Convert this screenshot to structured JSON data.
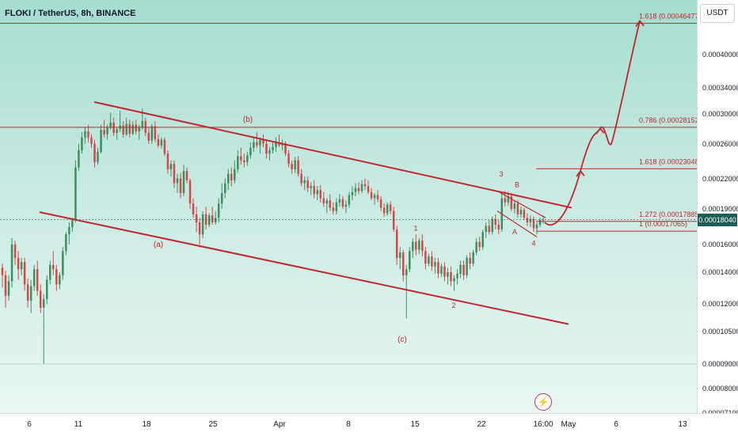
{
  "header": {
    "title": "FLOKI / TetherUS, 8h, BINANCE"
  },
  "price_axis": {
    "currency": "USDT",
    "last_price": "0.00018040"
  },
  "icons": {
    "lightning": "lightning-icon"
  },
  "colors": {
    "up": "#3d8f5f",
    "down": "#d44848",
    "drawing": "#c1272d",
    "last_price_bg": "#1e5d55"
  },
  "chart_data": {
    "type": "candlestick",
    "title": "FLOKI / TetherUS, 8h, BINANCE",
    "symbol": "FLOKIUSDT",
    "interval": "8h",
    "exchange": "BINANCE",
    "y_scale": "log",
    "ylim": [
      7.1e-05,
      0.00052
    ],
    "y_ticks": [
      "0.00040000",
      "0.00034000",
      "0.00030000",
      "0.00026000",
      "0.00022000",
      "0.00019000",
      "0.00016000",
      "0.00014000",
      "0.00012000",
      "0.00010500",
      "0.00009000",
      "0.00008000",
      "0.00007100"
    ],
    "x_ticks": [
      "6",
      "11",
      "18",
      "25",
      "Apr",
      "8",
      "15",
      "22",
      "16:00",
      "May",
      "6",
      "13"
    ],
    "last_price": 0.0001804,
    "fib_levels": [
      {
        "label": "1.618 (0.00046477)",
        "value": 0.00046477
      },
      {
        "label": "0.786 (0.00028152)",
        "value": 0.00028152
      },
      {
        "label": "1.618 (0.00023048)",
        "value": 0.00023048
      },
      {
        "label": "1.272 (0.00017885)",
        "value": 0.00017885
      },
      {
        "label": "1 (0.00017065)",
        "value": 0.00017065
      }
    ],
    "wave_labels": [
      "(a)",
      "(b)",
      "(c)",
      "1",
      "2",
      "3",
      "4",
      "A",
      "B"
    ],
    "candles": [
      [
        0.000143,
        0.000146,
        0.00013,
        0.000138
      ],
      [
        0.000138,
        0.000141,
        0.000118,
        0.000125
      ],
      [
        0.000125,
        0.000138,
        0.000122,
        0.000134
      ],
      [
        0.000134,
        0.000165,
        0.00013,
        0.00016
      ],
      [
        0.00016,
        0.000163,
        0.000145,
        0.00015
      ],
      [
        0.00015,
        0.000155,
        0.000135,
        0.000142
      ],
      [
        0.000142,
        0.00015,
        0.000138,
        0.000147
      ],
      [
        0.000147,
        0.00015,
        0.000128,
        0.000132
      ],
      [
        0.000132,
        0.000136,
        0.000118,
        0.000122
      ],
      [
        0.000122,
        0.000135,
        0.000115,
        0.000131
      ],
      [
        0.000131,
        0.000145,
        0.000128,
        0.000142
      ],
      [
        0.000142,
        0.000148,
        0.000125,
        0.000128
      ],
      [
        0.000128,
        0.000132,
        0.000115,
        0.000118
      ],
      [
        0.000118,
        0.000126,
        9e-05,
        0.000123
      ],
      [
        0.000123,
        0.000138,
        0.00012,
        0.000135
      ],
      [
        0.000135,
        0.000148,
        0.000132,
        0.000145
      ],
      [
        0.000145,
        0.000155,
        0.000138,
        0.000142
      ],
      [
        0.000142,
        0.000145,
        0.000128,
        0.000132
      ],
      [
        0.000132,
        0.00014,
        0.000129,
        0.000138
      ],
      [
        0.000138,
        0.000158,
        0.000135,
        0.000155
      ],
      [
        0.000155,
        0.00017,
        0.000152,
        0.000168
      ],
      [
        0.000168,
        0.000178,
        0.00016,
        0.000174
      ],
      [
        0.000174,
        0.000182,
        0.00017,
        0.00018
      ],
      [
        0.00018,
        0.00024,
        0.000178,
        0.000232
      ],
      [
        0.000232,
        0.00026,
        0.000228,
        0.000252
      ],
      [
        0.000252,
        0.000275,
        0.000248,
        0.000268
      ],
      [
        0.000268,
        0.000282,
        0.00026,
        0.000276
      ],
      [
        0.000276,
        0.000285,
        0.000262,
        0.000268
      ],
      [
        0.000268,
        0.000272,
        0.000255,
        0.00026
      ],
      [
        0.00026,
        0.000265,
        0.000232,
        0.000238
      ],
      [
        0.000238,
        0.000255,
        0.000235,
        0.00025
      ],
      [
        0.00025,
        0.000285,
        0.000248,
        0.000278
      ],
      [
        0.000278,
        0.000292,
        0.000268,
        0.000272
      ],
      [
        0.000272,
        0.000285,
        0.000265,
        0.000282
      ],
      [
        0.000282,
        0.000302,
        0.000278,
        0.000288
      ],
      [
        0.000288,
        0.000295,
        0.00027,
        0.000274
      ],
      [
        0.000274,
        0.000282,
        0.000265,
        0.000279
      ],
      [
        0.000279,
        0.000305,
        0.000275,
        0.000284
      ],
      [
        0.000284,
        0.00029,
        0.000268,
        0.000272
      ],
      [
        0.000272,
        0.000295,
        0.00027,
        0.000286
      ],
      [
        0.000286,
        0.000292,
        0.000268,
        0.000273
      ],
      [
        0.000273,
        0.00029,
        0.000271,
        0.000285
      ],
      [
        0.000285,
        0.000292,
        0.000272,
        0.000276
      ],
      [
        0.000276,
        0.000285,
        0.000265,
        0.000281
      ],
      [
        0.000281,
        0.000308,
        0.000278,
        0.00029
      ],
      [
        0.00029,
        0.000295,
        0.00027,
        0.000274
      ],
      [
        0.000274,
        0.000282,
        0.00026,
        0.000264
      ],
      [
        0.000264,
        0.000286,
        0.00026,
        0.000283
      ],
      [
        0.000283,
        0.00029,
        0.000262,
        0.000266
      ],
      [
        0.000266,
        0.000272,
        0.000255,
        0.000258
      ],
      [
        0.000258,
        0.000268,
        0.000254,
        0.000265
      ],
      [
        0.000265,
        0.000268,
        0.000245,
        0.000248
      ],
      [
        0.000248,
        0.000252,
        0.000225,
        0.00023
      ],
      [
        0.00023,
        0.00024,
        0.000222,
        0.000236
      ],
      [
        0.000236,
        0.00024,
        0.00021,
        0.000215
      ],
      [
        0.000215,
        0.000225,
        0.000205,
        0.00022
      ],
      [
        0.00022,
        0.000226,
        0.0002,
        0.000205
      ],
      [
        0.000205,
        0.000235,
        0.000202,
        0.000228
      ],
      [
        0.000228,
        0.000232,
        0.000215,
        0.000218
      ],
      [
        0.000218,
        0.00022,
        0.00019,
        0.000195
      ],
      [
        0.000195,
        0.0002,
        0.000182,
        0.000185
      ],
      [
        0.000185,
        0.000192,
        0.00017,
        0.000178
      ],
      [
        0.000178,
        0.000182,
        0.00016,
        0.000168
      ],
      [
        0.000168,
        0.000188,
        0.000165,
        0.000185
      ],
      [
        0.000185,
        0.000192,
        0.000172,
        0.000176
      ],
      [
        0.000176,
        0.000186,
        0.000174,
        0.000184
      ],
      [
        0.000184,
        0.000192,
        0.000176,
        0.000178
      ],
      [
        0.000178,
        0.000188,
        0.000176,
        0.000182
      ],
      [
        0.000182,
        0.0002,
        0.000178,
        0.000195
      ],
      [
        0.000195,
        0.000215,
        0.00019,
        0.000205
      ],
      [
        0.000205,
        0.00022,
        0.0002,
        0.000215
      ],
      [
        0.000215,
        0.00023,
        0.000208,
        0.000225
      ],
      [
        0.000225,
        0.000232,
        0.000212,
        0.000218
      ],
      [
        0.000218,
        0.00024,
        0.000215,
        0.00023
      ],
      [
        0.00023,
        0.000252,
        0.000226,
        0.000245
      ],
      [
        0.000245,
        0.000255,
        0.000235,
        0.00024
      ],
      [
        0.00024,
        0.000248,
        0.000232,
        0.000238
      ],
      [
        0.000238,
        0.00025,
        0.000234,
        0.000246
      ],
      [
        0.000246,
        0.000262,
        0.000242,
        0.000255
      ],
      [
        0.000255,
        0.000268,
        0.00025,
        0.000262
      ],
      [
        0.000262,
        0.000275,
        0.000255,
        0.000258
      ],
      [
        0.000258,
        0.000268,
        0.000248,
        0.000265
      ],
      [
        0.000265,
        0.000272,
        0.000256,
        0.00026
      ],
      [
        0.00026,
        0.000265,
        0.000242,
        0.000248
      ],
      [
        0.000248,
        0.000256,
        0.00024,
        0.000252
      ],
      [
        0.000252,
        0.000262,
        0.000248,
        0.000256
      ],
      [
        0.000256,
        0.000268,
        0.00025,
        0.000262
      ],
      [
        0.000262,
        0.000272,
        0.000256,
        0.000258
      ],
      [
        0.000258,
        0.000265,
        0.000252,
        0.00026
      ],
      [
        0.00026,
        0.000263,
        0.000245,
        0.000248
      ],
      [
        0.000248,
        0.000252,
        0.000232,
        0.000236
      ],
      [
        0.000236,
        0.00024,
        0.000225,
        0.00023
      ],
      [
        0.00023,
        0.000244,
        0.000226,
        0.00024
      ],
      [
        0.00024,
        0.000245,
        0.000222,
        0.000225
      ],
      [
        0.000225,
        0.00023,
        0.000212,
        0.000215
      ],
      [
        0.000215,
        0.000222,
        0.000208,
        0.000218
      ],
      [
        0.000218,
        0.000222,
        0.000206,
        0.00021
      ],
      [
        0.00021,
        0.000216,
        0.000203,
        0.000212
      ],
      [
        0.000212,
        0.000218,
        0.0002,
        0.000204
      ],
      [
        0.000204,
        0.000212,
        0.000198,
        0.000208
      ],
      [
        0.000208,
        0.000213,
        0.000196,
        0.0002
      ],
      [
        0.0002,
        0.000206,
        0.000192,
        0.000195
      ],
      [
        0.000195,
        0.0002,
        0.000186,
        0.000198
      ],
      [
        0.000198,
        0.000204,
        0.000188,
        0.000191
      ],
      [
        0.000191,
        0.000196,
        0.000185,
        0.000188
      ],
      [
        0.000188,
        0.0002,
        0.000185,
        0.000196
      ],
      [
        0.000196,
        0.000204,
        0.000192,
        0.000199
      ],
      [
        0.000199,
        0.000202,
        0.00019,
        0.000192
      ],
      [
        0.000192,
        0.000198,
        0.000186,
        0.000194
      ],
      [
        0.000194,
        0.000206,
        0.000191,
        0.000203
      ],
      [
        0.000203,
        0.000212,
        0.000198,
        0.000206
      ],
      [
        0.000206,
        0.000215,
        0.000202,
        0.00021
      ],
      [
        0.00021,
        0.000216,
        0.000204,
        0.000207
      ],
      [
        0.000207,
        0.000218,
        0.000205,
        0.000214
      ],
      [
        0.000214,
        0.00022,
        0.000208,
        0.000212
      ],
      [
        0.000212,
        0.000218,
        0.000204,
        0.000206
      ],
      [
        0.000206,
        0.00021,
        0.000198,
        0.0002
      ],
      [
        0.0002,
        0.000205,
        0.000194,
        0.000203
      ],
      [
        0.000203,
        0.000208,
        0.000196,
        0.000199
      ],
      [
        0.000199,
        0.000202,
        0.000188,
        0.000191
      ],
      [
        0.000191,
        0.000195,
        0.000183,
        0.000186
      ],
      [
        0.000186,
        0.000196,
        0.000184,
        0.000194
      ],
      [
        0.000194,
        0.000197,
        0.000185,
        0.000188
      ],
      [
        0.000188,
        0.000192,
        0.00017,
        0.000172
      ],
      [
        0.000172,
        0.000175,
        0.000145,
        0.00015
      ],
      [
        0.00015,
        0.000158,
        0.000142,
        0.000154
      ],
      [
        0.000154,
        0.000156,
        0.000134,
        0.000138
      ],
      [
        0.000138,
        0.000145,
        0.000112,
        0.000142
      ],
      [
        0.000142,
        0.000158,
        0.00014,
        0.000155
      ],
      [
        0.000155,
        0.000165,
        0.00015,
        0.000162
      ],
      [
        0.000162,
        0.000168,
        0.000152,
        0.000156
      ],
      [
        0.000156,
        0.000165,
        0.000153,
        0.000163
      ],
      [
        0.000163,
        0.000168,
        0.000151,
        0.000155
      ],
      [
        0.000155,
        0.000158,
        0.000142,
        0.000146
      ],
      [
        0.000146,
        0.000153,
        0.000144,
        0.000151
      ],
      [
        0.000151,
        0.000155,
        0.000141,
        0.000144
      ],
      [
        0.000144,
        0.00015,
        0.000139,
        0.000147
      ],
      [
        0.000147,
        0.00015,
        0.000136,
        0.000139
      ],
      [
        0.000139,
        0.000146,
        0.000137,
        0.000144
      ],
      [
        0.000144,
        0.000147,
        0.000134,
        0.000137
      ],
      [
        0.000137,
        0.000143,
        0.000132,
        0.00014
      ],
      [
        0.00014,
        0.000144,
        0.000131,
        0.000134
      ],
      [
        0.000134,
        0.000138,
        0.000128,
        0.000136
      ],
      [
        0.000136,
        0.000142,
        0.000132,
        0.000139
      ],
      [
        0.000139,
        0.000148,
        0.000136,
        0.000145
      ],
      [
        0.000145,
        0.000148,
        0.000135,
        0.000138
      ],
      [
        0.000138,
        0.000152,
        0.000136,
        0.00015
      ],
      [
        0.00015,
        0.000154,
        0.000142,
        0.000146
      ],
      [
        0.000146,
        0.000156,
        0.000144,
        0.000154
      ],
      [
        0.000154,
        0.000165,
        0.000152,
        0.000162
      ],
      [
        0.000162,
        0.000166,
        0.000155,
        0.000158
      ],
      [
        0.000158,
        0.000172,
        0.000156,
        0.00017
      ],
      [
        0.00017,
        0.000178,
        0.000165,
        0.000175
      ],
      [
        0.000175,
        0.00018,
        0.000168,
        0.00017
      ],
      [
        0.00017,
        0.000183,
        0.000168,
        0.000181
      ],
      [
        0.000181,
        0.000185,
        0.000172,
        0.000176
      ],
      [
        0.000176,
        0.00018,
        0.000168,
        0.000172
      ],
      [
        0.000172,
        0.000205,
        0.00017,
        0.0002
      ],
      [
        0.0002,
        0.000207,
        0.000192,
        0.000196
      ],
      [
        0.000196,
        0.000206,
        0.000193,
        0.000202
      ],
      [
        0.000202,
        0.000205,
        0.000188,
        0.00019
      ],
      [
        0.00019,
        0.000198,
        0.000186,
        0.000195
      ],
      [
        0.000195,
        0.000198,
        0.000182,
        0.000185
      ],
      [
        0.000185,
        0.000192,
        0.000182,
        0.000189
      ],
      [
        0.000189,
        0.000191,
        0.00018,
        0.000182
      ],
      [
        0.000182,
        0.000186,
        0.000175,
        0.000178
      ],
      [
        0.000178,
        0.000184,
        0.000174,
        0.000181
      ],
      [
        0.000181,
        0.000183,
        0.00017,
        0.000173
      ],
      [
        0.000173,
        0.000178,
        0.000168,
        0.000176
      ],
      [
        0.000176,
        0.000182,
        0.000174,
        0.00018
      ],
      [
        0.00018,
        0.000184,
        0.000177,
        0.0001804
      ]
    ],
    "projection_path": [
      [
        0.99,
        0.000178
      ],
      [
        0.995,
        0.000196
      ],
      [
        1.0,
        0.00023
      ],
      [
        1.004,
        0.00028152
      ],
      [
        1.007,
        0.00026
      ],
      [
        1.011,
        0.00046477
      ]
    ]
  }
}
